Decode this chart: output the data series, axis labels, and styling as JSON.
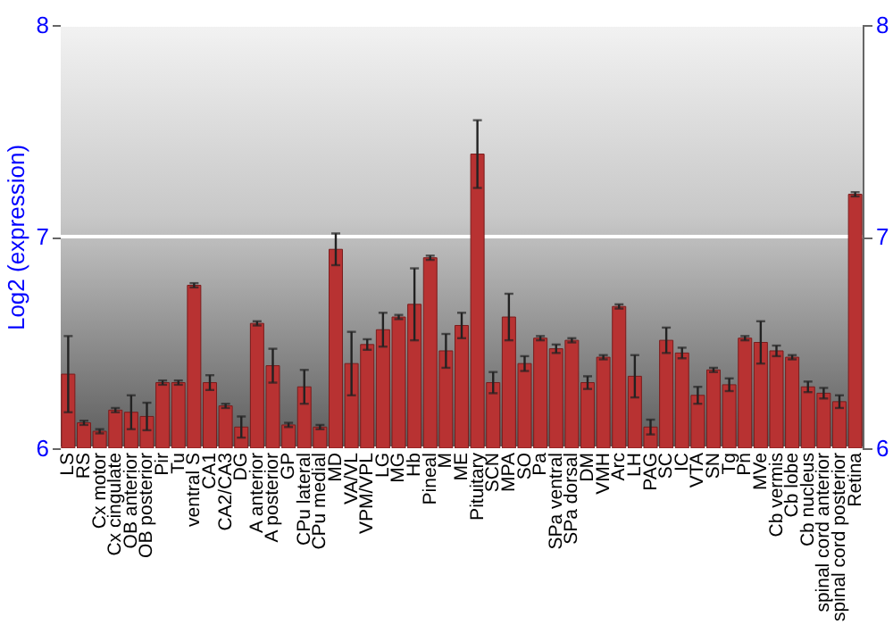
{
  "chart_data": {
    "type": "bar",
    "ylabel": "Log2 (expression)",
    "categories": [
      "LS",
      "RS",
      "Cx motor",
      "Cx cingulate",
      "OB anterior",
      "OB posterior",
      "Pir",
      "Tu",
      "ventral S",
      "CA1",
      "CA2/CA3",
      "DG",
      "A anterior",
      "A posterior",
      "GP",
      "CPu lateral",
      "CPu medial",
      "MD",
      "VA/VL",
      "VPM/VPL",
      "LG",
      "MG",
      "Hb",
      "Pineal",
      "M",
      "ME",
      "Pituitary",
      "SCN",
      "MPA",
      "SO",
      "Pa",
      "SPa ventral",
      "SPa dorsal",
      "DM",
      "VMH",
      "Arc",
      "LH",
      "PAG",
      "SC",
      "IC",
      "VTA",
      "SN",
      "Tg",
      "Pn",
      "MVe",
      "Cb vermis",
      "Cb lobe",
      "Cb nucleus",
      "spinal cord anterior",
      "spinal cord posterior",
      "Retina"
    ],
    "values": [
      6.35,
      6.12,
      6.08,
      6.18,
      6.17,
      6.15,
      6.31,
      6.31,
      6.77,
      6.31,
      6.2,
      6.1,
      6.59,
      6.39,
      6.11,
      6.29,
      6.1,
      6.94,
      6.4,
      6.49,
      6.56,
      6.62,
      6.68,
      6.9,
      6.46,
      6.58,
      7.39,
      6.31,
      6.62,
      6.4,
      6.52,
      6.47,
      6.51,
      6.31,
      6.43,
      6.67,
      6.34,
      6.1,
      6.51,
      6.45,
      6.25,
      6.37,
      6.3,
      6.52,
      6.5,
      6.46,
      6.43,
      6.29,
      6.26,
      6.22,
      7.2
    ],
    "errors": [
      0.18,
      0.01,
      0.01,
      0.01,
      0.08,
      0.065,
      0.01,
      0.01,
      0.01,
      0.035,
      0.01,
      0.05,
      0.01,
      0.08,
      0.01,
      0.08,
      0.01,
      0.075,
      0.15,
      0.025,
      0.08,
      0.01,
      0.17,
      0.01,
      0.08,
      0.06,
      0.16,
      0.05,
      0.11,
      0.035,
      0.01,
      0.02,
      0.01,
      0.03,
      0.01,
      0.01,
      0.1,
      0.035,
      0.06,
      0.025,
      0.04,
      0.01,
      0.03,
      0.01,
      0.1,
      0.025,
      0.01,
      0.025,
      0.025,
      0.03,
      0.01
    ],
    "color": "#b83232",
    "ylim": [
      6,
      8
    ],
    "yticks": [
      6,
      7,
      8
    ],
    "y2lim": [
      6,
      8
    ],
    "y2ticks": [
      6,
      7,
      8
    ],
    "grid": "y"
  }
}
